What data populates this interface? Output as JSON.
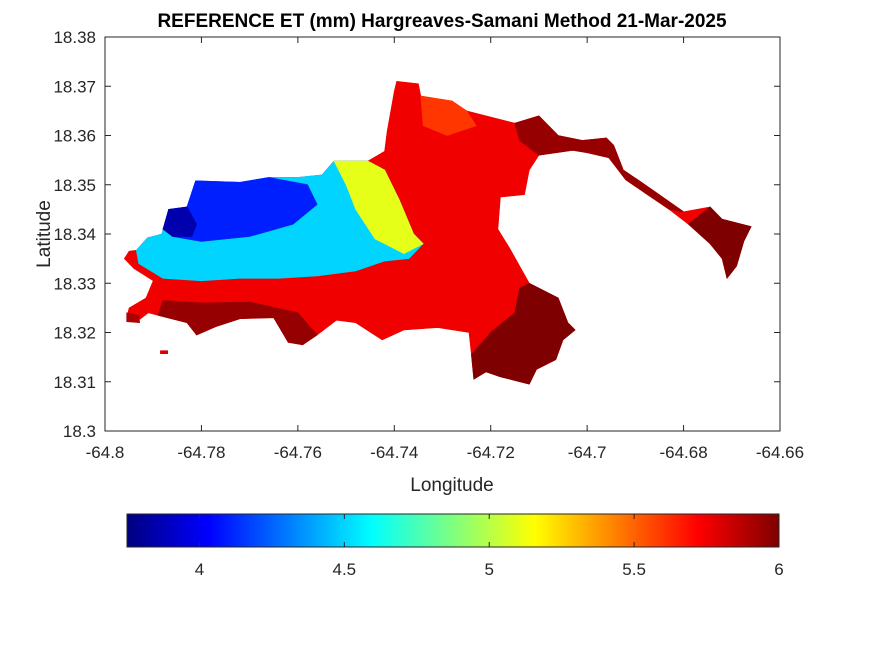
{
  "chart_data": {
    "type": "heatmap",
    "title": "REFERENCE ET (mm) Hargreaves-Samani Method  21-Mar-2025",
    "xlabel": "Longitude",
    "ylabel": "Latitude",
    "xlim": [
      -64.8,
      -64.66
    ],
    "ylim": [
      18.3,
      18.38
    ],
    "x_ticks": [
      -64.8,
      -64.78,
      -64.76,
      -64.74,
      -64.72,
      -64.7,
      -64.68,
      -64.66
    ],
    "y_ticks": [
      18.3,
      18.31,
      18.32,
      18.33,
      18.34,
      18.35,
      18.36,
      18.37,
      18.38
    ],
    "x_tick_labels": [
      "-64.8",
      "-64.78",
      "-64.76",
      "-64.74",
      "-64.72",
      "-64.7",
      "-64.68",
      "-64.66"
    ],
    "y_tick_labels": [
      "18.3",
      "18.31",
      "18.32",
      "18.33",
      "18.34",
      "18.35",
      "18.36",
      "18.37",
      "18.38"
    ],
    "grid": false,
    "colorbar": {
      "orientation": "horizontal",
      "placement": "bottom",
      "colormap": "jet",
      "range": [
        3.75,
        6.0
      ],
      "ticks": [
        4,
        4.5,
        5,
        5.5,
        6
      ],
      "tick_labels": [
        "4",
        "4.5",
        "5",
        "5.5",
        "6"
      ]
    },
    "colormap_stops": [
      "#00007f",
      "#0000ff",
      "#007fff",
      "#00ffff",
      "#7fff7f",
      "#ffff00",
      "#ff7f00",
      "#ff0000",
      "#7f0000"
    ],
    "regions": [
      {
        "name": "main-island",
        "value": 5.75,
        "boundary": [
          [
            -64.7935,
            18.3367
          ],
          [
            -64.7912,
            18.3392
          ],
          [
            -64.7882,
            18.34
          ],
          [
            -64.7868,
            18.345
          ],
          [
            -64.783,
            18.3455
          ],
          [
            -64.7812,
            18.3508
          ],
          [
            -64.772,
            18.3505
          ],
          [
            -64.766,
            18.3515
          ],
          [
            -64.76,
            18.3515
          ],
          [
            -64.755,
            18.352
          ],
          [
            -64.7525,
            18.3548
          ],
          [
            -64.7455,
            18.3548
          ],
          [
            -64.742,
            18.3568
          ],
          [
            -64.7415,
            18.3608
          ],
          [
            -64.74,
            18.369
          ],
          [
            -64.7395,
            18.371
          ],
          [
            -64.735,
            18.3705
          ],
          [
            -64.7345,
            18.368
          ],
          [
            -64.728,
            18.367
          ],
          [
            -64.725,
            18.365
          ],
          [
            -64.715,
            18.3625
          ],
          [
            -64.71,
            18.364
          ],
          [
            -64.706,
            18.36
          ],
          [
            -64.701,
            18.359
          ],
          [
            -64.696,
            18.3595
          ],
          [
            -64.6945,
            18.358
          ],
          [
            -64.6925,
            18.353
          ],
          [
            -64.6895,
            18.351
          ],
          [
            -64.6865,
            18.349
          ],
          [
            -64.68,
            18.3445
          ],
          [
            -64.6745,
            18.3455
          ],
          [
            -64.672,
            18.343
          ],
          [
            -64.666,
            18.3415
          ],
          [
            -64.6675,
            18.3385
          ],
          [
            -64.669,
            18.3335
          ],
          [
            -64.671,
            18.331
          ],
          [
            -64.672,
            18.335
          ],
          [
            -64.6745,
            18.338
          ],
          [
            -64.679,
            18.342
          ],
          [
            -64.683,
            18.345
          ],
          [
            -64.6875,
            18.348
          ],
          [
            -64.692,
            18.351
          ],
          [
            -64.6955,
            18.3555
          ],
          [
            -64.7,
            18.3565
          ],
          [
            -64.703,
            18.357
          ],
          [
            -64.71,
            18.356
          ],
          [
            -64.712,
            18.353
          ],
          [
            -64.713,
            18.348
          ],
          [
            -64.718,
            18.3475
          ],
          [
            -64.7185,
            18.341
          ],
          [
            -64.716,
            18.337
          ],
          [
            -64.712,
            18.33
          ],
          [
            -64.706,
            18.327
          ],
          [
            -64.704,
            18.322
          ],
          [
            -64.7025,
            18.3205
          ],
          [
            -64.705,
            18.3185
          ],
          [
            -64.7065,
            18.3145
          ],
          [
            -64.7105,
            18.3125
          ],
          [
            -64.712,
            18.3095
          ],
          [
            -64.718,
            18.311
          ],
          [
            -64.721,
            18.312
          ],
          [
            -64.7235,
            18.3105
          ],
          [
            -64.724,
            18.3155
          ],
          [
            -64.7245,
            18.32
          ],
          [
            -64.731,
            18.321
          ],
          [
            -64.738,
            18.3205
          ],
          [
            -64.7425,
            18.3185
          ],
          [
            -64.748,
            18.322
          ],
          [
            -64.752,
            18.3225
          ],
          [
            -64.756,
            18.3195
          ],
          [
            -64.759,
            18.3175
          ],
          [
            -64.762,
            18.318
          ],
          [
            -64.765,
            18.323
          ],
          [
            -64.772,
            18.3228
          ],
          [
            -64.777,
            18.3212
          ],
          [
            -64.781,
            18.3195
          ],
          [
            -64.783,
            18.322
          ],
          [
            -64.789,
            18.3235
          ],
          [
            -64.791,
            18.324
          ],
          [
            -64.793,
            18.3225
          ],
          [
            -64.7955,
            18.323
          ],
          [
            -64.795,
            18.325
          ],
          [
            -64.7915,
            18.327
          ],
          [
            -64.79,
            18.3305
          ],
          [
            -64.794,
            18.333
          ],
          [
            -64.796,
            18.335
          ],
          [
            -64.795,
            18.3365
          ]
        ]
      },
      {
        "name": "west-cool-zone",
        "value": 4.5,
        "boundary": [
          [
            -64.7935,
            18.3367
          ],
          [
            -64.7912,
            18.3392
          ],
          [
            -64.7882,
            18.34
          ],
          [
            -64.7868,
            18.345
          ],
          [
            -64.783,
            18.3455
          ],
          [
            -64.7812,
            18.3508
          ],
          [
            -64.772,
            18.3505
          ],
          [
            -64.766,
            18.3515
          ],
          [
            -64.76,
            18.3515
          ],
          [
            -64.755,
            18.352
          ],
          [
            -64.7525,
            18.3548
          ],
          [
            -64.7455,
            18.3548
          ],
          [
            -64.742,
            18.353
          ],
          [
            -64.739,
            18.347
          ],
          [
            -64.736,
            18.34
          ],
          [
            -64.734,
            18.338
          ],
          [
            -64.737,
            18.335
          ],
          [
            -64.742,
            18.3345
          ],
          [
            -64.748,
            18.3325
          ],
          [
            -64.756,
            18.3315
          ],
          [
            -64.764,
            18.331
          ],
          [
            -64.772,
            18.331
          ],
          [
            -64.78,
            18.3305
          ],
          [
            -64.788,
            18.331
          ],
          [
            -64.793,
            18.334
          ]
        ]
      },
      {
        "name": "north-cool-core",
        "value": 4.1,
        "boundary": [
          [
            -64.7868,
            18.345
          ],
          [
            -64.783,
            18.3455
          ],
          [
            -64.7812,
            18.3508
          ],
          [
            -64.772,
            18.3505
          ],
          [
            -64.766,
            18.3515
          ],
          [
            -64.758,
            18.35
          ],
          [
            -64.756,
            18.346
          ],
          [
            -64.761,
            18.342
          ],
          [
            -64.77,
            18.3395
          ],
          [
            -64.78,
            18.3385
          ],
          [
            -64.786,
            18.3395
          ]
        ]
      },
      {
        "name": "west-coldest-core",
        "value": 3.85,
        "boundary": [
          [
            -64.7868,
            18.345
          ],
          [
            -64.783,
            18.3455
          ],
          [
            -64.781,
            18.342
          ],
          [
            -64.782,
            18.3395
          ],
          [
            -64.786,
            18.3395
          ],
          [
            -64.788,
            18.341
          ]
        ]
      },
      {
        "name": "central-transition-zone",
        "value": 5.1,
        "boundary": [
          [
            -64.7525,
            18.3548
          ],
          [
            -64.7455,
            18.3548
          ],
          [
            -64.742,
            18.353
          ],
          [
            -64.739,
            18.347
          ],
          [
            -64.736,
            18.34
          ],
          [
            -64.734,
            18.338
          ],
          [
            -64.738,
            18.336
          ],
          [
            -64.744,
            18.339
          ],
          [
            -64.748,
            18.345
          ],
          [
            -64.75,
            18.35
          ]
        ]
      },
      {
        "name": "south-hot-belt",
        "value": 5.95,
        "boundary": [
          [
            -64.762,
            18.318
          ],
          [
            -64.765,
            18.323
          ],
          [
            -64.772,
            18.3228
          ],
          [
            -64.777,
            18.3212
          ],
          [
            -64.781,
            18.3195
          ],
          [
            -64.783,
            18.322
          ],
          [
            -64.789,
            18.3235
          ],
          [
            -64.788,
            18.3265
          ],
          [
            -64.78,
            18.326
          ],
          [
            -64.77,
            18.3262
          ],
          [
            -64.76,
            18.324
          ],
          [
            -64.756,
            18.3195
          ],
          [
            -64.759,
            18.3175
          ]
        ]
      },
      {
        "name": "southeast-hot-zone",
        "value": 6.0,
        "boundary": [
          [
            -64.712,
            18.33
          ],
          [
            -64.706,
            18.327
          ],
          [
            -64.704,
            18.322
          ],
          [
            -64.7025,
            18.3205
          ],
          [
            -64.705,
            18.3185
          ],
          [
            -64.7065,
            18.3145
          ],
          [
            -64.7105,
            18.3125
          ],
          [
            -64.712,
            18.3095
          ],
          [
            -64.718,
            18.311
          ],
          [
            -64.721,
            18.312
          ],
          [
            -64.7235,
            18.3105
          ],
          [
            -64.724,
            18.3155
          ],
          [
            -64.72,
            18.32
          ],
          [
            -64.715,
            18.324
          ],
          [
            -64.714,
            18.329
          ]
        ]
      },
      {
        "name": "east-peninsula-hot",
        "value": 6.0,
        "boundary": [
          [
            -64.6745,
            18.3455
          ],
          [
            -64.672,
            18.343
          ],
          [
            -64.666,
            18.3415
          ],
          [
            -64.6675,
            18.3385
          ],
          [
            -64.669,
            18.3335
          ],
          [
            -64.671,
            18.331
          ],
          [
            -64.672,
            18.335
          ],
          [
            -64.6745,
            18.338
          ],
          [
            -64.679,
            18.342
          ]
        ]
      },
      {
        "name": "northeast-strip-hot",
        "value": 5.95,
        "boundary": [
          [
            -64.715,
            18.3625
          ],
          [
            -64.71,
            18.364
          ],
          [
            -64.706,
            18.36
          ],
          [
            -64.701,
            18.359
          ],
          [
            -64.696,
            18.3595
          ],
          [
            -64.6945,
            18.358
          ],
          [
            -64.6925,
            18.353
          ],
          [
            -64.6895,
            18.351
          ],
          [
            -64.6865,
            18.349
          ],
          [
            -64.68,
            18.3445
          ],
          [
            -64.683,
            18.345
          ],
          [
            -64.6875,
            18.348
          ],
          [
            -64.692,
            18.351
          ],
          [
            -64.6955,
            18.3555
          ],
          [
            -64.7,
            18.3565
          ],
          [
            -64.703,
            18.357
          ],
          [
            -64.71,
            18.356
          ],
          [
            -64.714,
            18.359
          ]
        ]
      },
      {
        "name": "north-orange-patch",
        "value": 5.6,
        "boundary": [
          [
            -64.7345,
            18.368
          ],
          [
            -64.728,
            18.367
          ],
          [
            -64.725,
            18.365
          ],
          [
            -64.723,
            18.362
          ],
          [
            -64.729,
            18.36
          ],
          [
            -64.734,
            18.362
          ]
        ]
      },
      {
        "name": "southwest-islet",
        "value": 5.9,
        "boundary": [
          [
            -64.7955,
            18.324
          ],
          [
            -64.793,
            18.3235
          ],
          [
            -64.7928,
            18.322
          ],
          [
            -64.7955,
            18.3222
          ]
        ]
      },
      {
        "name": "tiny-islet",
        "value": 5.8,
        "boundary": [
          [
            -64.7885,
            18.3163
          ],
          [
            -64.787,
            18.3163
          ],
          [
            -64.787,
            18.3157
          ],
          [
            -64.7885,
            18.3157
          ]
        ]
      }
    ]
  }
}
